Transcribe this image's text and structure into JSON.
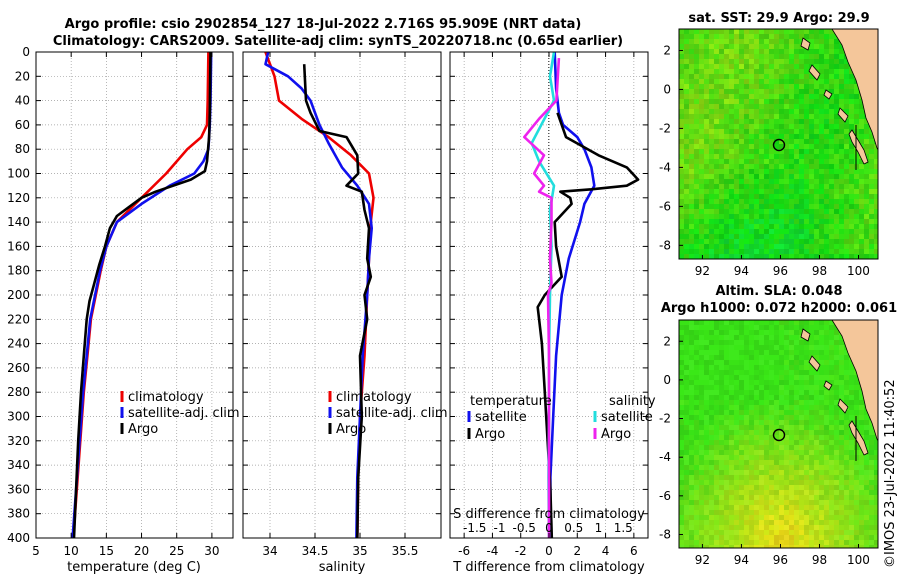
{
  "header": {
    "line1": "Argo profile: csio 2902854_127 18-Jul-2022 2.716S 95.909E (NRT data)",
    "line2": "Climatology: CARS2009. Satellite-adj clim: synTS_20220718.nc (0.65d earlier)"
  },
  "colors": {
    "climatology": "#ee0000",
    "satellite": "#1010ee",
    "argo": "#000000",
    "t_sat": "#1010ee",
    "t_argo": "#000000",
    "s_sat": "#22dddd",
    "s_argo": "#ee22ee",
    "land": "#f4c69a"
  },
  "chart_data": [
    {
      "type": "line",
      "id": "temperature",
      "xlabel": "temperature (deg C)",
      "xlim": [
        5,
        33
      ],
      "ylim": [
        0,
        400
      ],
      "xticks": [
        "5",
        "10",
        "15",
        "20",
        "25",
        "30"
      ],
      "yticks": [
        "0",
        "20",
        "40",
        "60",
        "80",
        "100",
        "120",
        "140",
        "160",
        "180",
        "200",
        "220",
        "240",
        "260",
        "280",
        "300",
        "320",
        "340",
        "360",
        "380",
        "400"
      ],
      "legend": {
        "entries": [
          "climatology",
          "satellite-adj. clim",
          "Argo"
        ]
      },
      "series": [
        {
          "name": "climatology",
          "points": [
            [
              29.5,
              0
            ],
            [
              29.4,
              40
            ],
            [
              29.3,
              60
            ],
            [
              28.5,
              70
            ],
            [
              26.5,
              80
            ],
            [
              23.5,
              100
            ],
            [
              20,
              120
            ],
            [
              16.5,
              140
            ],
            [
              15,
              160
            ],
            [
              14.2,
              180
            ],
            [
              13.5,
              200
            ],
            [
              12.8,
              220
            ],
            [
              12.3,
              250
            ],
            [
              11.8,
              280
            ],
            [
              11.3,
              320
            ],
            [
              10.8,
              360
            ],
            [
              10.3,
              400
            ]
          ]
        },
        {
          "name": "satellite-adj. clim",
          "points": [
            [
              29.9,
              0
            ],
            [
              29.8,
              40
            ],
            [
              29.7,
              60
            ],
            [
              29.5,
              80
            ],
            [
              28.8,
              90
            ],
            [
              27.5,
              100
            ],
            [
              24,
              110
            ],
            [
              20,
              125
            ],
            [
              16.5,
              140
            ],
            [
              15,
              160
            ],
            [
              14.1,
              180
            ],
            [
              13.4,
              200
            ],
            [
              12.7,
              220
            ],
            [
              12.2,
              250
            ],
            [
              11.7,
              280
            ],
            [
              11.2,
              320
            ],
            [
              10.7,
              360
            ],
            [
              10.2,
              400
            ]
          ]
        },
        {
          "name": "Argo",
          "points": [
            [
              29.8,
              0
            ],
            [
              29.7,
              50
            ],
            [
              29.6,
              70
            ],
            [
              29.3,
              90
            ],
            [
              29,
              98
            ],
            [
              27,
              105
            ],
            [
              22,
              115
            ],
            [
              20,
              120
            ],
            [
              16.5,
              135
            ],
            [
              15.5,
              145
            ],
            [
              14.8,
              160
            ],
            [
              14,
              175
            ],
            [
              13.3,
              190
            ],
            [
              12.6,
              205
            ],
            [
              12.2,
              220
            ],
            [
              11.8,
              250
            ],
            [
              11.4,
              280
            ],
            [
              11,
              320
            ],
            [
              10.7,
              360
            ],
            [
              10.4,
              400
            ]
          ]
        }
      ]
    },
    {
      "type": "line",
      "id": "salinity",
      "xlabel": "salinity",
      "xlim": [
        33.7,
        35.9
      ],
      "ylim": [
        0,
        400
      ],
      "xticks": [
        "34",
        "34.5",
        "35",
        "35.5"
      ],
      "legend": {
        "entries": [
          "climatology",
          "satellite-adj. clim",
          "Argo"
        ]
      },
      "series": [
        {
          "name": "climatology",
          "points": [
            [
              33.95,
              0
            ],
            [
              34.05,
              20
            ],
            [
              34.1,
              40
            ],
            [
              34.35,
              55
            ],
            [
              34.65,
              70
            ],
            [
              34.9,
              85
            ],
            [
              35.1,
              100
            ],
            [
              35.15,
              120
            ],
            [
              35.12,
              140
            ],
            [
              35.1,
              170
            ],
            [
              35.08,
              200
            ],
            [
              35.05,
              250
            ],
            [
              35.0,
              300
            ],
            [
              34.98,
              350
            ],
            [
              34.97,
              400
            ]
          ]
        },
        {
          "name": "satellite-adj. clim",
          "points": [
            [
              33.98,
              0
            ],
            [
              33.95,
              10
            ],
            [
              34.2,
              20
            ],
            [
              34.35,
              30
            ],
            [
              34.45,
              40
            ],
            [
              34.55,
              60
            ],
            [
              34.65,
              75
            ],
            [
              34.8,
              95
            ],
            [
              34.97,
              110
            ],
            [
              35.1,
              125
            ],
            [
              35.13,
              145
            ],
            [
              35.1,
              170
            ],
            [
              35.08,
              200
            ],
            [
              35.03,
              250
            ],
            [
              35.0,
              300
            ],
            [
              34.97,
              350
            ],
            [
              34.96,
              400
            ]
          ]
        },
        {
          "name": "Argo",
          "points": [
            [
              34.38,
              10
            ],
            [
              34.4,
              40
            ],
            [
              34.45,
              50
            ],
            [
              34.55,
              65
            ],
            [
              34.85,
              70
            ],
            [
              34.97,
              85
            ],
            [
              34.98,
              100
            ],
            [
              34.85,
              110
            ],
            [
              35.02,
              115
            ],
            [
              35.05,
              130
            ],
            [
              35.1,
              145
            ],
            [
              35.08,
              170
            ],
            [
              35.12,
              185
            ],
            [
              35.05,
              200
            ],
            [
              35.08,
              220
            ],
            [
              35.0,
              250
            ],
            [
              35.02,
              300
            ],
            [
              34.98,
              350
            ],
            [
              34.97,
              400
            ]
          ]
        }
      ]
    },
    {
      "type": "line",
      "id": "differences",
      "xlabel": "T difference from climatology",
      "xlabel_top": "S difference from climatology",
      "xlim": [
        -7,
        7
      ],
      "ylim": [
        0,
        400
      ],
      "xticks": [
        "-6",
        "-4",
        "-2",
        "0",
        "2",
        "4",
        "6"
      ],
      "top_ticks": [
        "-1.5",
        "-1",
        "-0.5",
        "0",
        "0.5",
        "1",
        "1.5"
      ],
      "legend": {
        "temperature_title": "temperature",
        "salinity_title": "salinity",
        "temperature_entries": [
          "satellite",
          "Argo"
        ],
        "salinity_entries": [
          "satellite",
          "Argo"
        ]
      },
      "series": [
        {
          "name": "T satellite",
          "points": [
            [
              0.4,
              0
            ],
            [
              0.5,
              30
            ],
            [
              0.7,
              50
            ],
            [
              1.0,
              60
            ],
            [
              2.0,
              70
            ],
            [
              2.5,
              80
            ],
            [
              3.0,
              95
            ],
            [
              3.2,
              110
            ],
            [
              2.5,
              125
            ],
            [
              2.2,
              140
            ],
            [
              1.4,
              170
            ],
            [
              0.9,
              200
            ],
            [
              0.5,
              250
            ],
            [
              0.3,
              300
            ],
            [
              0.1,
              350
            ],
            [
              0.1,
              400
            ]
          ]
        },
        {
          "name": "T Argo",
          "points": [
            [
              0.6,
              50
            ],
            [
              1.2,
              70
            ],
            [
              3.5,
              85
            ],
            [
              5.5,
              95
            ],
            [
              6.3,
              105
            ],
            [
              5.5,
              110
            ],
            [
              3.0,
              113
            ],
            [
              0.8,
              115
            ],
            [
              1.5,
              120
            ],
            [
              1.6,
              125
            ],
            [
              0.4,
              140
            ],
            [
              0.5,
              160
            ],
            [
              0.9,
              185
            ],
            [
              -0.3,
              200
            ],
            [
              -0.8,
              210
            ],
            [
              -0.5,
              240
            ],
            [
              -0.3,
              280
            ],
            [
              -0.1,
              320
            ],
            [
              0.1,
              360
            ],
            [
              0.2,
              400
            ]
          ]
        },
        {
          "name": "S satellite",
          "points": [
            [
              0.1,
              0
            ],
            [
              0.02,
              20
            ],
            [
              0.1,
              40
            ],
            [
              -0.35,
              75
            ],
            [
              -0.2,
              90
            ],
            [
              0.1,
              110
            ],
            [
              0.02,
              130
            ],
            [
              0.05,
              160
            ],
            [
              0.02,
              200
            ],
            [
              0.0,
              250
            ],
            [
              0.0,
              300
            ],
            [
              -0.01,
              350
            ],
            [
              0.0,
              400
            ]
          ]
        },
        {
          "name": "S Argo",
          "points": [
            [
              0.2,
              5
            ],
            [
              0.15,
              40
            ],
            [
              -0.2,
              55
            ],
            [
              -0.5,
              70
            ],
            [
              -0.1,
              85
            ],
            [
              -0.3,
              100
            ],
            [
              -0.1,
              110
            ],
            [
              -0.2,
              115
            ],
            [
              0.05,
              120
            ],
            [
              0.05,
              140
            ],
            [
              0.02,
              170
            ],
            [
              0.05,
              190
            ],
            [
              -0.02,
              200
            ],
            [
              0.0,
              250
            ],
            [
              0.0,
              300
            ],
            [
              0.0,
              350
            ],
            [
              0.0,
              400
            ]
          ]
        }
      ]
    },
    {
      "type": "heatmap",
      "id": "sst_map",
      "title": "sat. SST: 29.9 Argo: 29.9",
      "xticks": [
        "92",
        "94",
        "96",
        "98",
        "100"
      ],
      "yticks": [
        "2",
        "0",
        "-2",
        "-4",
        "-6",
        "-8"
      ],
      "xlim": [
        90.8,
        101
      ],
      "ylim": [
        -8.7,
        3.1
      ],
      "marker": [
        95.909,
        -2.716
      ]
    },
    {
      "type": "heatmap",
      "id": "sla_map",
      "title": "Altim. SLA: 0.048",
      "subtitle": "Argo h1000: 0.072 h2000: 0.061",
      "xticks": [
        "92",
        "94",
        "96",
        "98",
        "100"
      ],
      "yticks": [
        "2",
        "0",
        "-2",
        "-4",
        "-6",
        "-8"
      ],
      "xlim": [
        90.8,
        101
      ],
      "ylim": [
        -8.7,
        3.1
      ],
      "marker": [
        95.909,
        -2.716
      ]
    }
  ],
  "footer": {
    "credit": "©IMOS 23-Jul-2022 11:40:52"
  }
}
